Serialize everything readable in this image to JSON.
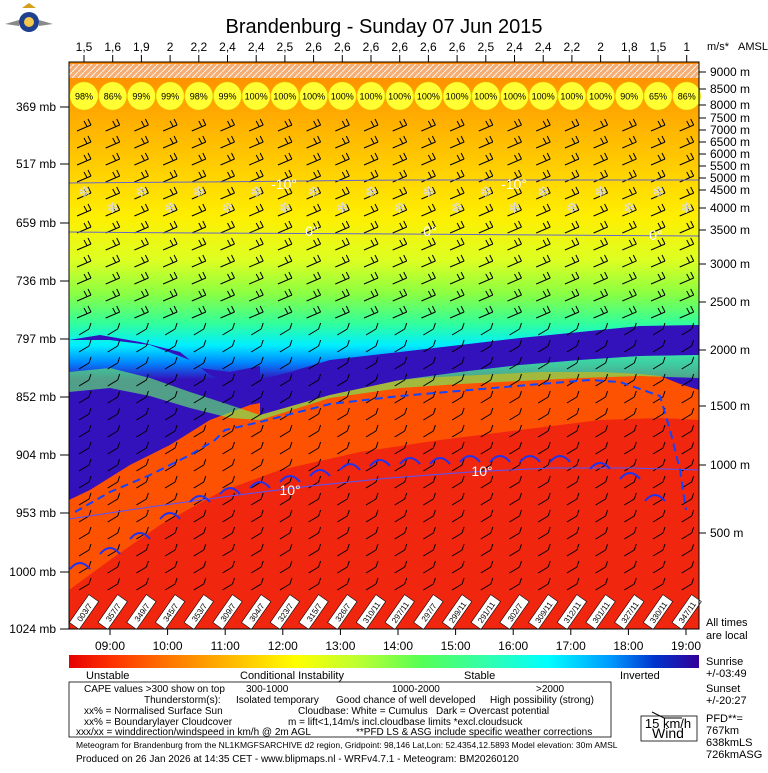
{
  "title": "Brandenburg - Sunday 07 Jun 2015",
  "top_unit": "m/s*",
  "top_amsl": "AMSL",
  "top_values": [
    "1,5",
    "1,6",
    "1,9",
    "2",
    "2,2",
    "2,4",
    "2,4",
    "2,5",
    "2,6",
    "2,6",
    "2,6",
    "2,6",
    "2,6",
    "2,6",
    "2,5",
    "2,4",
    "2,4",
    "2,2",
    "2",
    "1,8",
    "1,5",
    "1"
  ],
  "cloud_cover": [
    "98%",
    "86%",
    "99%",
    "99%",
    "98%",
    "99%",
    "100%",
    "100%",
    "100%",
    "100%",
    "100%",
    "100%",
    "100%",
    "100%",
    "100%",
    "100%",
    "100%",
    "100%",
    "100%",
    "90%",
    "65%",
    "86%"
  ],
  "pressure_levels": [
    "369 mb",
    "517 mb",
    "659 mb",
    "736 mb",
    "797 mb",
    "852 mb",
    "904 mb",
    "953 mb",
    "1000 mb",
    "1024 mb"
  ],
  "altitude_labels": [
    "9000 m",
    "8500 m",
    "8000 m",
    "7500 m",
    "7000 m",
    "6500 m",
    "6000 m",
    "5500 m",
    "5000 m",
    "4500 m",
    "4000 m",
    "3500 m",
    "3000 m",
    "2500 m",
    "2000 m",
    "1500 m",
    "1000 m",
    "500 m"
  ],
  "time_labels": [
    "09:00",
    "10:00",
    "11:00",
    "12:00",
    "13:00",
    "14:00",
    "15:00",
    "16:00",
    "17:00",
    "18:00",
    "19:00"
  ],
  "wind_ground": [
    "003/7",
    "357/7",
    "349/7",
    "345/7",
    "353/7",
    "309/7",
    "304/7",
    "323/7",
    "315/7",
    "326/7",
    "310/11",
    "297/11",
    "297/7",
    "299/11",
    "291/11",
    "302/7",
    "309/11",
    "312/11",
    "301/11",
    "327/11",
    "330/11",
    "347/11"
  ],
  "isotherm_labels": [
    "-10°",
    "-10°",
    "0°",
    "0°",
    "0°",
    "10°",
    "10°"
  ],
  "all_times_note": [
    "All times",
    "are local"
  ],
  "sunrise": {
    "label": "Sunrise",
    "value": "+/-03:49"
  },
  "sunset": {
    "label": "Sunset",
    "value": "+/-20:27"
  },
  "pfd": {
    "label": "PFD**=",
    "values": [
      "767km",
      "638kmLS",
      "726kmASG"
    ]
  },
  "scale_labels": [
    "Unstable",
    "Conditional Instability",
    "Stable",
    "Inverted"
  ],
  "scale_colors": [
    "#e60000",
    "#ff5500",
    "#ff9900",
    "#ffcc00",
    "#ffff00",
    "#ccff33",
    "#66ff33",
    "#33ff99",
    "#00ffff",
    "#0099ff",
    "#0033cc",
    "#330099"
  ],
  "legend": {
    "cape_note": "CAPE values >300 show on top",
    "cape_ranges": [
      "300-1000",
      "1000-2000",
      ">2000"
    ],
    "thunder_label": "Thunderstorm(s):",
    "thunder_values": [
      "Isolated temporary",
      "Good chance of well developed",
      "High possibility (strong)"
    ],
    "sun_note": "xx% = Normalised Surface Sun",
    "cloudbase_note": "Cloudbase: White = Cumulus",
    "dark_note": "Dark = Overcast potential",
    "blcloud_note": "xx% = Boundarylayer Cloudcover",
    "lift_note": "m = lift<1,14m/s incl.cloudbase limits *excl.cloudsuck",
    "wind_note": "xxx/xx = winddirection/windspeed in km/h @ 2m AGL",
    "pfd_note": "**PFD LS & ASG include specific weather corrections"
  },
  "wind_box": {
    "speed": "15 km/h",
    "label": "Wind"
  },
  "footer_source": "Meteogram for Brandenburg from the NL1KMGFSARCHIVE d2 region, Gridpoint: 98,146 Lat,Lon: 52.4354,12.5893 Model elevation: 30m AMSL",
  "footer_produced": "Produced on 26 Jan 2026 at 14:35 CET - www.blipmaps.nl - WRFv4.7.1 - Meteogram: BM20260120",
  "chart_data": {
    "type": "heatmap",
    "title": "Brandenburg - Sunday 07 Jun 2015",
    "x": [
      "09:00",
      "10:00",
      "11:00",
      "12:00",
      "13:00",
      "14:00",
      "15:00",
      "16:00",
      "17:00",
      "18:00",
      "19:00"
    ],
    "y_pressure_mb": [
      369,
      517,
      659,
      736,
      797,
      852,
      904,
      953,
      1000,
      1024
    ],
    "y_altitude_m": [
      9000,
      8500,
      8000,
      7500,
      7000,
      6500,
      6000,
      5500,
      5000,
      4500,
      4000,
      3500,
      3000,
      2500,
      2000,
      1500,
      1000,
      500
    ],
    "thermal_strength_ms": [
      1.5,
      1.6,
      1.9,
      2,
      2.2,
      2.4,
      2.4,
      2.5,
      2.6,
      2.6,
      2.6,
      2.6,
      2.6,
      2.6,
      2.5,
      2.4,
      2.4,
      2.2,
      2,
      1.8,
      1.5,
      1
    ],
    "surface_sun_pct": [
      98,
      86,
      99,
      99,
      98,
      99,
      100,
      100,
      100,
      100,
      100,
      100,
      100,
      100,
      100,
      100,
      100,
      100,
      100,
      90,
      65,
      86
    ]
  }
}
